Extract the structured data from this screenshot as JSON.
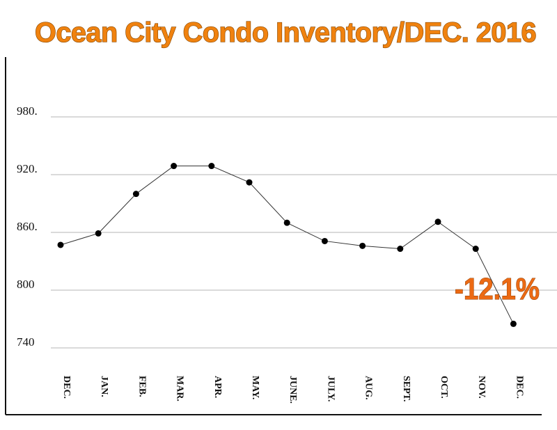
{
  "chart_data": {
    "type": "line",
    "title": "Ocean City Condo Inventory/DEC. 2016",
    "xlabel": "",
    "ylabel": "",
    "categories": [
      "DEC.",
      "JAN.",
      "FEB.",
      "MAR.",
      "APR.",
      "MAY.",
      "JUNE.",
      "JULY.",
      "AUG.",
      "SEPT.",
      "OCT.",
      "NOV.",
      "DEC."
    ],
    "series": [
      {
        "values": [
          847,
          859,
          900,
          929,
          929,
          912,
          870,
          851,
          846,
          843,
          871,
          843,
          765
        ]
      }
    ],
    "y_ticks": [
      "980.",
      "920.",
      "860.",
      "800",
      "740"
    ],
    "ylim": [
      725,
      1000
    ],
    "grid": true,
    "annotation": "-12.1%"
  }
}
